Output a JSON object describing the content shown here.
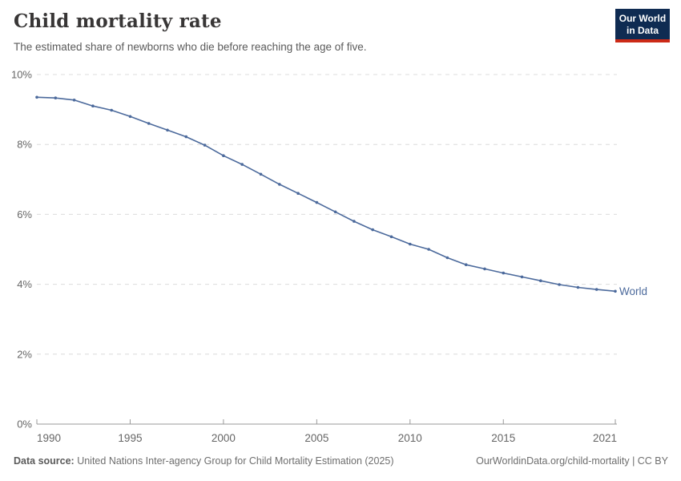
{
  "header": {
    "title": "Child mortality rate",
    "subtitle": "The estimated share of newborns who die before reaching the age of five.",
    "logo_line1": "Our World",
    "logo_line2": "in Data"
  },
  "chart_data": {
    "type": "line",
    "title": "Child mortality rate",
    "xlabel": "",
    "ylabel": "",
    "xlim": [
      1990,
      2021
    ],
    "ylim": [
      0,
      10
    ],
    "grid": "horizontal-dashed",
    "legend_position": "end-of-line-label",
    "x_ticks": [
      1990,
      1995,
      2000,
      2005,
      2010,
      2015,
      2021
    ],
    "y_ticks": [
      {
        "value": 0,
        "label": "0%"
      },
      {
        "value": 2,
        "label": "2%"
      },
      {
        "value": 4,
        "label": "4%"
      },
      {
        "value": 6,
        "label": "6%"
      },
      {
        "value": 8,
        "label": "8%"
      },
      {
        "value": 10,
        "label": "10%"
      }
    ],
    "series": [
      {
        "name": "World",
        "x": [
          1990,
          1991,
          1992,
          1993,
          1994,
          1995,
          1996,
          1997,
          1998,
          1999,
          2000,
          2001,
          2002,
          2003,
          2004,
          2005,
          2006,
          2007,
          2008,
          2009,
          2010,
          2011,
          2012,
          2013,
          2014,
          2015,
          2016,
          2017,
          2018,
          2019,
          2020,
          2021
        ],
        "values": [
          9.35,
          9.33,
          9.27,
          9.1,
          8.98,
          8.8,
          8.6,
          8.41,
          8.22,
          7.98,
          7.68,
          7.43,
          7.15,
          6.86,
          6.6,
          6.34,
          6.07,
          5.8,
          5.56,
          5.36,
          5.15,
          5.0,
          4.76,
          4.56,
          4.44,
          4.32,
          4.21,
          4.1,
          3.99,
          3.91,
          3.85,
          3.8
        ]
      }
    ]
  },
  "footer": {
    "datasource_label": "Data source:",
    "datasource_text": " United Nations Inter-agency Group for Child Mortality Estimation (2025)",
    "link_text": "OurWorldinData.org/child-mortality | CC BY"
  },
  "colors": {
    "line": "#4c6a9c",
    "grid": "#dcdcdc",
    "axis": "#999999",
    "tick_text": "#666666",
    "title_text": "#383636",
    "subtitle_text": "#5b5b5b",
    "logo_bg": "#0f2b52",
    "logo_bar": "#cc2a17"
  }
}
